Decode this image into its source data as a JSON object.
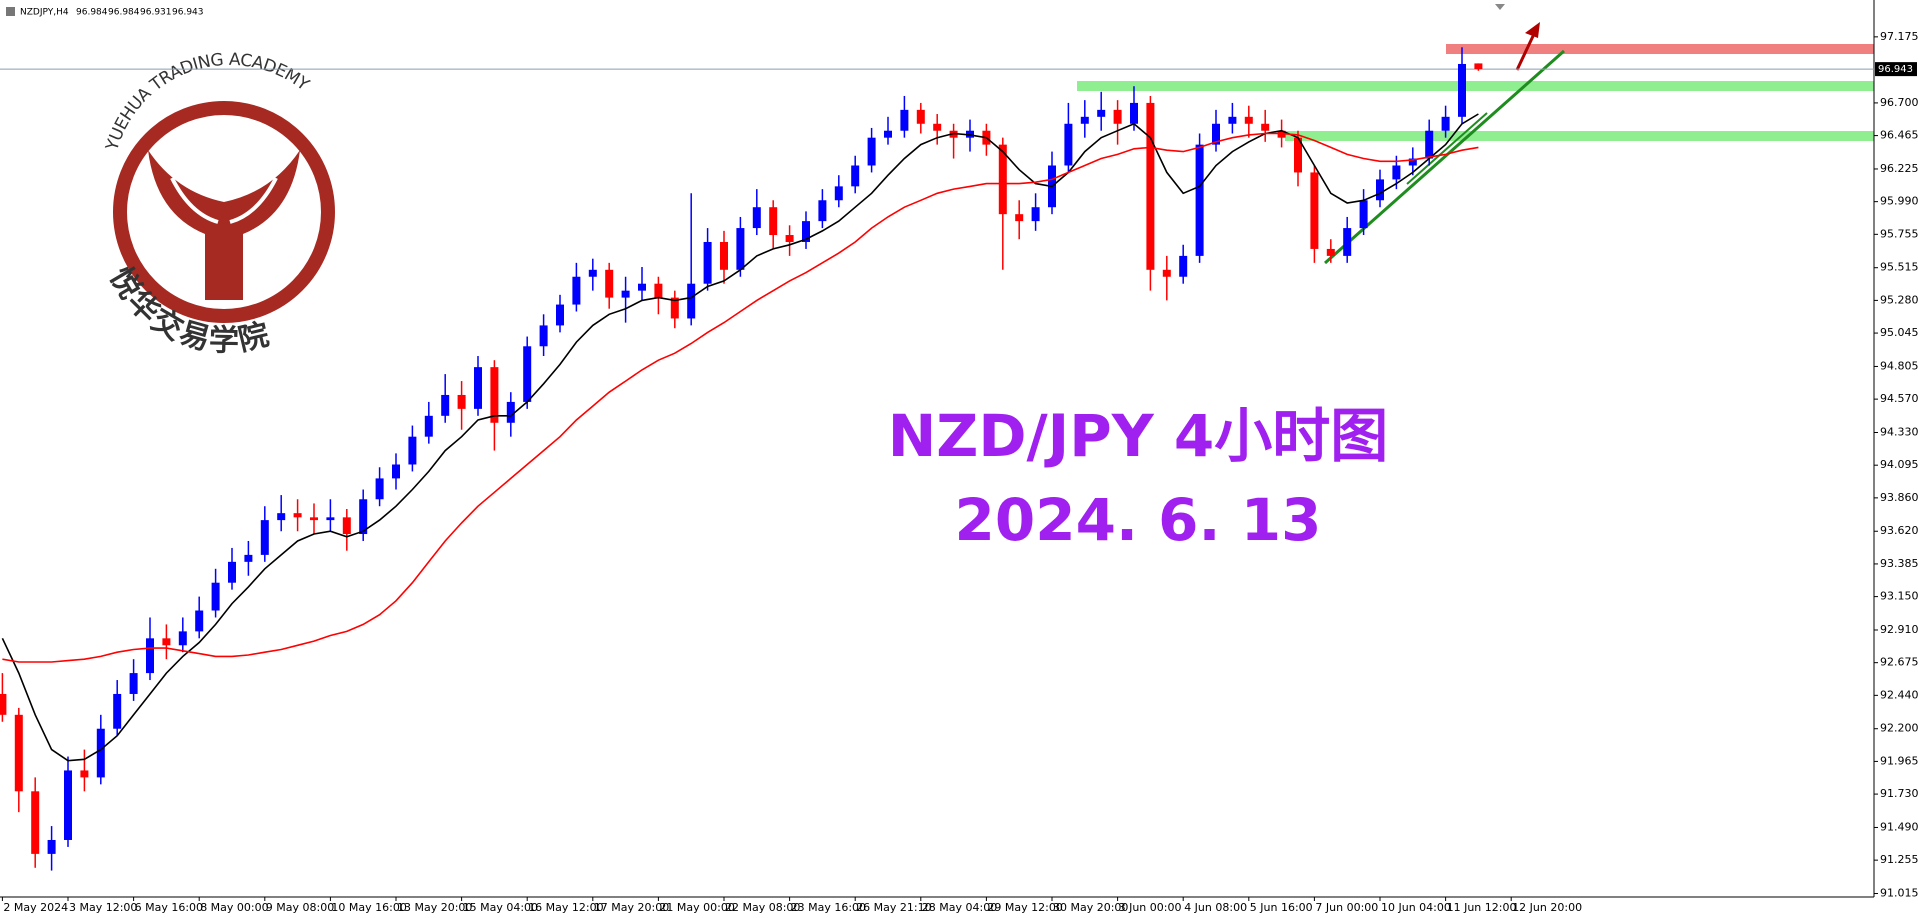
{
  "chart_data": {
    "type": "candlestick",
    "symbol": "NZDJPY,H4",
    "ohlc": [
      96.984,
      96.984,
      96.931,
      96.943
    ],
    "current_price": 96.943,
    "title": "NZD/JPY 4小时图",
    "subtitle": "2024. 6. 13",
    "up_color": "#0000ff",
    "down_color": "#ff0000",
    "ylim": [
      90.99,
      97.44
    ],
    "yticks": [
      97.175,
      {
        "value": 96.7,
        "label": "96.700"
      },
      96.465,
      96.225,
      {
        "value": 95.99,
        "label": "95.990"
      },
      95.755,
      95.515,
      {
        "value": 95.28,
        "label": "95.280"
      },
      95.045,
      94.805,
      {
        "value": 94.57,
        "label": "94.570"
      },
      {
        "value": 94.33,
        "label": "94.330"
      },
      94.095,
      {
        "value": 93.86,
        "label": "93.860"
      },
      {
        "value": 93.62,
        "label": "93.620"
      },
      93.385,
      {
        "value": 93.15,
        "label": "93.150"
      },
      {
        "value": 92.91,
        "label": "92.910"
      },
      92.675,
      {
        "value": 92.44,
        "label": "92.440"
      },
      {
        "value": 92.2,
        "label": "92.200"
      },
      91.965,
      {
        "value": 91.73,
        "label": "91.730"
      },
      {
        "value": 91.49,
        "label": "91.490"
      },
      91.255,
      91.015
    ],
    "categories": [
      "2 May 2024",
      null,
      null,
      null,
      "3 May 12:00",
      null,
      null,
      null,
      "6 May 16:00",
      null,
      null,
      null,
      "8 May 00:00",
      null,
      null,
      null,
      "9 May 08:00",
      null,
      null,
      null,
      "10 May 16:00",
      null,
      null,
      null,
      "13 May 20:00",
      null,
      null,
      null,
      "15 May 04:00",
      null,
      null,
      null,
      "16 May 12:00",
      null,
      null,
      null,
      "17 May 20:00",
      null,
      null,
      null,
      "21 May 00:00",
      null,
      null,
      null,
      "22 May 08:00",
      null,
      null,
      null,
      "23 May 16:00",
      null,
      null,
      null,
      "26 May 21:10",
      null,
      null,
      null,
      "28 May 04:00",
      null,
      null,
      null,
      "29 May 12:00",
      null,
      null,
      null,
      "30 May 20:00",
      null,
      null,
      null,
      "3 Jun 00:00",
      null,
      null,
      null,
      "4 Jun 08:00",
      null,
      null,
      null,
      "5 Jun 16:00",
      null,
      null,
      null,
      "7 Jun 00:00",
      null,
      null,
      null,
      "10 Jun 04:00",
      null,
      null,
      null,
      "11 Jun 12:00",
      null,
      null,
      null,
      "12 Jun 20:00"
    ],
    "open": [
      92.45,
      92.3,
      91.75,
      91.3,
      91.4,
      91.9,
      91.85,
      92.2,
      92.45,
      92.6,
      92.85,
      92.8,
      92.9,
      93.05,
      93.25,
      93.4,
      93.45,
      93.7,
      93.75,
      93.72,
      93.7,
      93.72,
      93.6,
      93.85,
      94,
      94.1,
      94.3,
      94.45,
      94.6,
      94.5,
      94.8,
      94.4,
      94.55,
      94.95,
      95.1,
      95.25,
      95.45,
      95.5,
      95.3,
      95.35,
      95.4,
      95.3,
      95.15,
      95.4,
      95.7,
      95.5,
      95.8,
      95.95,
      95.75,
      95.7,
      95.85,
      96,
      96.1,
      96.25,
      96.45,
      96.5,
      96.65,
      96.55,
      96.5,
      96.45,
      96.5,
      96.4,
      95.9,
      95.85,
      95.95,
      96.25,
      96.55,
      96.6,
      96.65,
      96.55,
      96.7,
      95.5,
      95.45,
      95.6,
      96.4,
      96.55,
      96.6,
      96.55,
      96.5,
      96.45,
      96.2,
      95.65,
      95.6,
      95.8,
      96,
      96.15,
      96.25,
      96.3,
      96.5,
      96.6,
      96.984,
      null,
      null
    ],
    "high": [
      92.6,
      92.35,
      91.85,
      91.5,
      92,
      92.05,
      92.3,
      92.55,
      92.7,
      93,
      92.95,
      93,
      93.15,
      93.35,
      93.5,
      93.55,
      93.8,
      93.88,
      93.85,
      93.82,
      93.85,
      93.78,
      93.92,
      94.08,
      94.18,
      94.38,
      94.55,
      94.75,
      94.7,
      94.88,
      94.85,
      94.62,
      95.02,
      95.18,
      95.32,
      95.55,
      95.58,
      95.55,
      95.45,
      95.52,
      95.45,
      95.35,
      96.05,
      95.8,
      95.78,
      95.88,
      96.08,
      96,
      95.82,
      95.92,
      96.08,
      96.18,
      96.32,
      96.52,
      96.6,
      96.75,
      96.7,
      96.62,
      96.55,
      96.58,
      96.55,
      96.45,
      96,
      96.05,
      96.35,
      96.7,
      96.72,
      96.78,
      96.72,
      96.82,
      96.75,
      95.6,
      95.68,
      96.48,
      96.65,
      96.7,
      96.68,
      96.65,
      96.58,
      96.5,
      96.25,
      95.72,
      95.88,
      96.08,
      96.22,
      96.32,
      96.38,
      96.58,
      96.68,
      97.1,
      96.984,
      null,
      null
    ],
    "low": [
      92.25,
      91.6,
      91.2,
      91.18,
      91.35,
      91.75,
      91.8,
      92.15,
      92.4,
      92.55,
      92.7,
      92.75,
      92.85,
      93,
      93.2,
      93.3,
      93.4,
      93.62,
      93.62,
      93.6,
      93.62,
      93.48,
      93.55,
      93.8,
      93.92,
      94.05,
      94.25,
      94.4,
      94.35,
      94.45,
      94.2,
      94.3,
      94.5,
      94.88,
      95.05,
      95.2,
      95.35,
      95.22,
      95.12,
      95.28,
      95.18,
      95.08,
      95.1,
      95.35,
      95.4,
      95.45,
      95.75,
      95.65,
      95.6,
      95.65,
      95.8,
      95.95,
      96.05,
      96.2,
      96.4,
      96.45,
      96.48,
      96.4,
      96.3,
      96.35,
      96.32,
      95.5,
      95.72,
      95.78,
      95.9,
      96.2,
      96.45,
      96.5,
      96.4,
      96.5,
      95.35,
      95.28,
      95.4,
      95.55,
      96.35,
      96.48,
      96.45,
      96.42,
      96.38,
      96.1,
      95.55,
      95.55,
      95.55,
      95.75,
      95.95,
      96.08,
      96.18,
      96.25,
      96.45,
      96.55,
      96.931,
      null,
      null
    ],
    "close": [
      92.3,
      91.75,
      91.3,
      91.4,
      91.9,
      91.85,
      92.2,
      92.45,
      92.6,
      92.85,
      92.8,
      92.9,
      93.05,
      93.25,
      93.4,
      93.45,
      93.7,
      93.75,
      93.72,
      93.7,
      93.72,
      93.6,
      93.85,
      94,
      94.1,
      94.3,
      94.45,
      94.6,
      94.5,
      94.8,
      94.4,
      94.55,
      94.95,
      95.1,
      95.25,
      95.45,
      95.5,
      95.3,
      95.35,
      95.4,
      95.3,
      95.15,
      95.4,
      95.7,
      95.5,
      95.8,
      95.95,
      95.75,
      95.7,
      95.85,
      96,
      96.1,
      96.25,
      96.45,
      96.5,
      96.65,
      96.55,
      96.5,
      96.45,
      96.5,
      96.4,
      95.9,
      95.85,
      95.95,
      96.25,
      96.55,
      96.6,
      96.65,
      96.55,
      96.7,
      95.5,
      95.45,
      95.6,
      96.4,
      96.55,
      96.6,
      96.55,
      96.5,
      96.45,
      96.2,
      95.65,
      95.6,
      95.8,
      96,
      96.15,
      96.25,
      96.3,
      96.5,
      96.6,
      96.98,
      96.943,
      null,
      null
    ],
    "lines": [
      {
        "color": "#000000",
        "values": [
          92.85,
          92.6,
          92.3,
          92.05,
          91.97,
          91.98,
          92.05,
          92.15,
          92.3,
          92.45,
          92.6,
          92.72,
          92.82,
          92.95,
          93.1,
          93.22,
          93.35,
          93.45,
          93.55,
          93.6,
          93.62,
          93.58,
          93.62,
          93.7,
          93.8,
          93.92,
          94.05,
          94.2,
          94.3,
          94.42,
          94.45,
          94.45,
          94.55,
          94.68,
          94.82,
          94.98,
          95.1,
          95.18,
          95.22,
          95.28,
          95.3,
          95.28,
          95.3,
          95.38,
          95.42,
          95.5,
          95.6,
          95.65,
          95.68,
          95.72,
          95.78,
          95.85,
          95.95,
          96.05,
          96.18,
          96.3,
          96.4,
          96.45,
          96.48,
          96.47,
          96.45,
          96.35,
          96.22,
          96.12,
          96.1,
          96.2,
          96.35,
          96.45,
          96.5,
          96.55,
          96.45,
          96.2,
          96.05,
          96.1,
          96.25,
          96.35,
          96.42,
          96.48,
          96.5,
          96.45,
          96.25,
          96.05,
          95.98,
          96,
          96.05,
          96.12,
          96.2,
          96.3,
          96.4,
          96.55,
          96.62,
          null,
          null
        ]
      },
      {
        "color": "#ff0000",
        "values": [
          92.7,
          92.68,
          92.68,
          92.68,
          92.69,
          92.7,
          92.72,
          92.75,
          92.77,
          92.78,
          92.78,
          92.76,
          92.74,
          92.72,
          92.72,
          92.73,
          92.75,
          92.77,
          92.8,
          92.83,
          92.87,
          92.9,
          92.95,
          93.02,
          93.12,
          93.25,
          93.4,
          93.55,
          93.68,
          93.8,
          93.9,
          94,
          94.1,
          94.2,
          94.3,
          94.42,
          94.52,
          94.62,
          94.7,
          94.78,
          94.85,
          94.9,
          94.97,
          95.05,
          95.12,
          95.2,
          95.28,
          95.35,
          95.42,
          95.48,
          95.55,
          95.62,
          95.7,
          95.8,
          95.88,
          95.95,
          96,
          96.05,
          96.08,
          96.1,
          96.12,
          96.12,
          96.12,
          96.13,
          96.15,
          96.2,
          96.25,
          96.3,
          96.33,
          96.37,
          96.38,
          96.36,
          96.35,
          96.38,
          96.42,
          96.45,
          96.47,
          96.48,
          96.48,
          96.47,
          96.43,
          96.38,
          96.33,
          96.3,
          96.28,
          96.28,
          96.29,
          96.31,
          96.33,
          96.36,
          96.38,
          null,
          null
        ]
      }
    ]
  },
  "logo": {
    "arc_text": "YUEHUA TRADING ACADEMY",
    "name": "悦华交易学院"
  }
}
